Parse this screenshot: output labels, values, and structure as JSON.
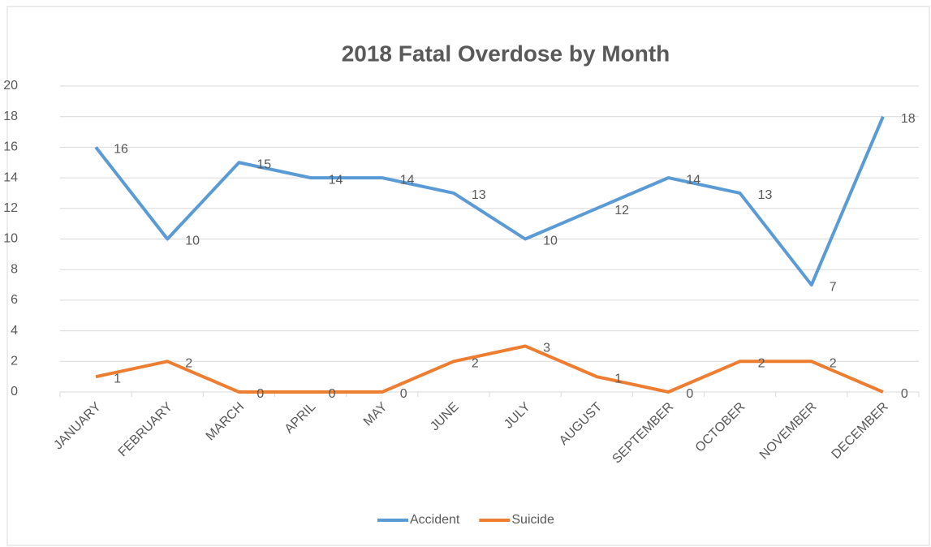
{
  "chart_data": {
    "type": "line",
    "title": "2018 Fatal Overdose by Month",
    "categories": [
      "JANUARY",
      "FEBRUARY",
      "MARCH",
      "APRIL",
      "MAY",
      "JUNE",
      "JULY",
      "AUGUST",
      "SEPTEMBER",
      "OCTOBER",
      "NOVEMBER",
      "DECEMBER"
    ],
    "series": [
      {
        "name": "Accident",
        "color": "#5b9bd5",
        "values": [
          16,
          10,
          15,
          14,
          14,
          13,
          10,
          12,
          14,
          13,
          7,
          18
        ]
      },
      {
        "name": "Suicide",
        "color": "#ed7d31",
        "values": [
          1,
          2,
          0,
          0,
          0,
          2,
          3,
          1,
          0,
          2,
          2,
          0
        ]
      }
    ],
    "ylim": [
      0,
      20
    ],
    "yticks": [
      0,
      2,
      4,
      6,
      8,
      10,
      12,
      14,
      16,
      18,
      20
    ],
    "grid": true,
    "legend": "bottom"
  }
}
